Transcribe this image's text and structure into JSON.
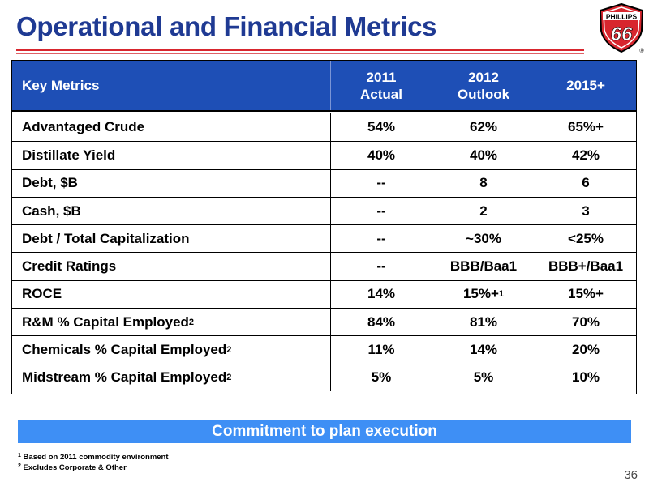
{
  "title": "Operational and Financial Metrics",
  "logo": {
    "brand": "PHILLIPS",
    "number": "66",
    "registered": "®",
    "colors": {
      "red": "#d8262e",
      "black": "#000000"
    }
  },
  "table": {
    "headers": [
      {
        "lines": [
          "Key Metrics"
        ]
      },
      {
        "lines": [
          "2011",
          "Actual"
        ]
      },
      {
        "lines": [
          "2012",
          "Outlook"
        ]
      },
      {
        "lines": [
          "2015+"
        ]
      }
    ],
    "rows": [
      {
        "label": "Advantaged Crude",
        "sup": "",
        "v2011": "54%",
        "v2012": "62%",
        "v2012_sup": "",
        "v2015": "65%+"
      },
      {
        "label": "Distillate Yield",
        "sup": "",
        "v2011": "40%",
        "v2012": "40%",
        "v2012_sup": "",
        "v2015": "42%"
      },
      {
        "label": "Debt, $B",
        "sup": "",
        "v2011": "--",
        "v2012": "8",
        "v2012_sup": "",
        "v2015": "6"
      },
      {
        "label": "Cash, $B",
        "sup": "",
        "v2011": "--",
        "v2012": "2",
        "v2012_sup": "",
        "v2015": "3"
      },
      {
        "label": "Debt / Total Capitalization",
        "sup": "",
        "v2011": "--",
        "v2012": "~30%",
        "v2012_sup": "",
        "v2015": "<25%"
      },
      {
        "label": "Credit Ratings",
        "sup": "",
        "v2011": "--",
        "v2012": "BBB/Baa1",
        "v2012_sup": "",
        "v2015": "BBB+/Baa1"
      },
      {
        "label": "ROCE",
        "sup": "",
        "v2011": "14%",
        "v2012": "15%+",
        "v2012_sup": "1",
        "v2015": "15%+"
      },
      {
        "label": "R&M % Capital Employed",
        "sup": "2",
        "v2011": "84%",
        "v2012": "81%",
        "v2012_sup": "",
        "v2015": "70%"
      },
      {
        "label": "Chemicals % Capital Employed",
        "sup": "2",
        "v2011": "11%",
        "v2012": "14%",
        "v2012_sup": "",
        "v2015": "20%"
      },
      {
        "label": "Midstream % Capital Employed",
        "sup": "2",
        "v2011": "5%",
        "v2012": "5%",
        "v2012_sup": "",
        "v2015": "10%"
      }
    ]
  },
  "banner": "Commitment to plan execution",
  "footnotes": [
    {
      "mark": "1",
      "text": "Based on 2011 commodity environment"
    },
    {
      "mark": "2",
      "text": "Excludes Corporate & Other"
    }
  ],
  "page_number": "36",
  "colors": {
    "title": "#1f3a93",
    "header_bg": "#1e4fb6",
    "banner_bg": "#3e8ff5",
    "rule": "#d8262e"
  }
}
